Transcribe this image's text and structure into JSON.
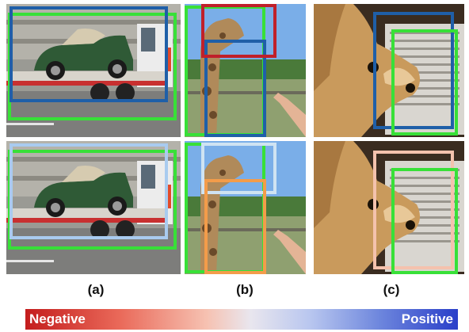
{
  "captions": [
    "(a)",
    "(b)",
    "(c)"
  ],
  "scale": {
    "negative_label": "Negative",
    "positive_label": "Positive",
    "colors": {
      "negative": "#c41d1d",
      "neutral": "#e9e6ee",
      "positive": "#2a3fc9"
    }
  },
  "box_colors": {
    "green": "#38e038",
    "dark_blue": "#1f5fa8",
    "red": "#c0202a",
    "light_blue": "#a9cbef",
    "light_blue_2": "#cfe3f2",
    "orange": "#f39c4a",
    "peach": "#f4c2ad"
  },
  "images": [
    {
      "name": "tow-truck-with-vintage-car",
      "row": "top"
    },
    {
      "name": "giraffe-and-hand",
      "row": "top"
    },
    {
      "name": "chihuahua-near-monitor",
      "row": "top"
    },
    {
      "name": "tow-truck-with-vintage-car",
      "row": "bottom"
    },
    {
      "name": "giraffe-and-hand",
      "row": "bottom"
    },
    {
      "name": "chihuahua-near-monitor",
      "row": "bottom"
    }
  ]
}
